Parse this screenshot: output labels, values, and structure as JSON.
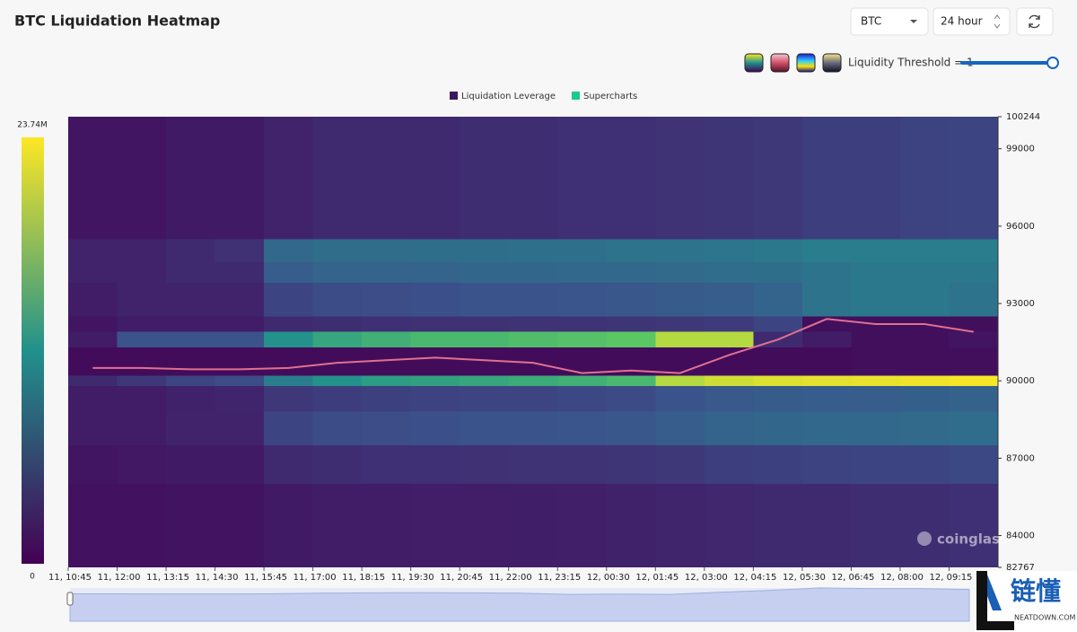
{
  "header": {
    "title": "BTC Liquidation Heatmap",
    "symbol": "BTC",
    "range": "24 hour",
    "threshold_label": "Liquidity Threshold = 1"
  },
  "chart_data": {
    "type": "heatmap",
    "series": [
      {
        "name": "Liquidation Leverage",
        "color": "#3b1760"
      },
      {
        "name": "Supercharts",
        "color": "#19c98e"
      }
    ],
    "x": [
      "11, 10:45",
      "11, 12:00",
      "11, 13:15",
      "11, 14:30",
      "11, 15:45",
      "11, 17:00",
      "11, 18:15",
      "11, 19:30",
      "11, 20:45",
      "11, 22:00",
      "11, 23:15",
      "12, 00:30",
      "12, 01:45",
      "12, 03:00",
      "12, 04:15",
      "12, 05:30",
      "12, 06:45",
      "12, 08:00",
      "12, 09:15"
    ],
    "ylim": [
      82767,
      100244
    ],
    "yticks": [
      82767,
      84000,
      87000,
      90000,
      93000,
      96000,
      99000,
      100244
    ],
    "ybins": [
      82767,
      86000,
      87500,
      88800,
      89800,
      90200,
      91300,
      91900,
      92500,
      93800,
      94600,
      95500,
      100244
    ],
    "colorlim": [
      0,
      23.74
    ],
    "colorticks": [
      0,
      {
        "value": 23.74,
        "label": "23.74M"
      }
    ],
    "z": [
      [
        1.2,
        1.2,
        1.3,
        1.3,
        1.8,
        2,
        2,
        2.1,
        2.1,
        2.2,
        2.3,
        2.4,
        2.6,
        2.8,
        3,
        3,
        3.2,
        3.2,
        3.4
      ],
      [
        1.5,
        1.6,
        1.8,
        1.8,
        3,
        3.2,
        3.4,
        3.4,
        3.5,
        3.6,
        3.6,
        3.8,
        4,
        4.5,
        4.6,
        4.8,
        5,
        5,
        5.2
      ],
      [
        2,
        2,
        2.5,
        2.5,
        5,
        5.5,
        5.6,
        5.8,
        6,
        6,
        6.2,
        6.4,
        7,
        7.5,
        7.8,
        8,
        8,
        8.2,
        8.4
      ],
      [
        2,
        2,
        2.4,
        2.6,
        4,
        4.4,
        4.6,
        4.8,
        5,
        5,
        5.2,
        5.4,
        6,
        6.5,
        6.8,
        7,
        7,
        7.2,
        7.4
      ],
      [
        3,
        4,
        5,
        5.5,
        10,
        12,
        13,
        13.5,
        14,
        14.5,
        15,
        16,
        21,
        22,
        22.5,
        22.8,
        23,
        23.2,
        23.5
      ],
      [
        0.8,
        0.8,
        0.8,
        0.8,
        0.8,
        0.8,
        0.8,
        0.8,
        0.8,
        0.8,
        0.8,
        0.8,
        0.8,
        0.8,
        0.8,
        0.8,
        1,
        1,
        1
      ],
      [
        2,
        6,
        6,
        6,
        12,
        14,
        15,
        16,
        16,
        16.5,
        17,
        17.5,
        21,
        21,
        3,
        2,
        1,
        1,
        1.5
      ],
      [
        1.5,
        2,
        2,
        2,
        3,
        3.2,
        3.4,
        3.5,
        3.5,
        3.6,
        3.6,
        3.8,
        4,
        4.2,
        5,
        1,
        1,
        1,
        1
      ],
      [
        2,
        2.5,
        2.5,
        2.5,
        5,
        5.5,
        5.6,
        5.8,
        6,
        6,
        6.2,
        6.4,
        6.8,
        7,
        7.5,
        9,
        9.5,
        9.5,
        9
      ],
      [
        2.5,
        2.5,
        3,
        3,
        7,
        7.5,
        7.5,
        7.5,
        7.8,
        7.8,
        8,
        8,
        8.2,
        8.4,
        8.6,
        9,
        9.5,
        9.5,
        9.5
      ],
      [
        2.5,
        2.5,
        3,
        3.5,
        8,
        8.5,
        8.5,
        8.6,
        8.6,
        8.8,
        8.8,
        9,
        9,
        9.2,
        9.5,
        10,
        10,
        10,
        10
      ],
      [
        1.5,
        1.5,
        1.8,
        1.8,
        2.5,
        3,
        3,
        3,
        3.2,
        3.2,
        3.4,
        3.4,
        3.6,
        3.8,
        4,
        4.5,
        4.5,
        4.8,
        5
      ]
    ],
    "price": {
      "color": "#e0708f",
      "values": [
        90500,
        90500,
        90450,
        90450,
        90500,
        90700,
        90800,
        90900,
        90800,
        90700,
        90300,
        90400,
        90300,
        91000,
        91600,
        92400,
        92200,
        92200,
        91900
      ]
    }
  },
  "watermark": "coinglass",
  "logo": {
    "title": "链懂",
    "subtitle": "NEATDOWN.COM"
  }
}
